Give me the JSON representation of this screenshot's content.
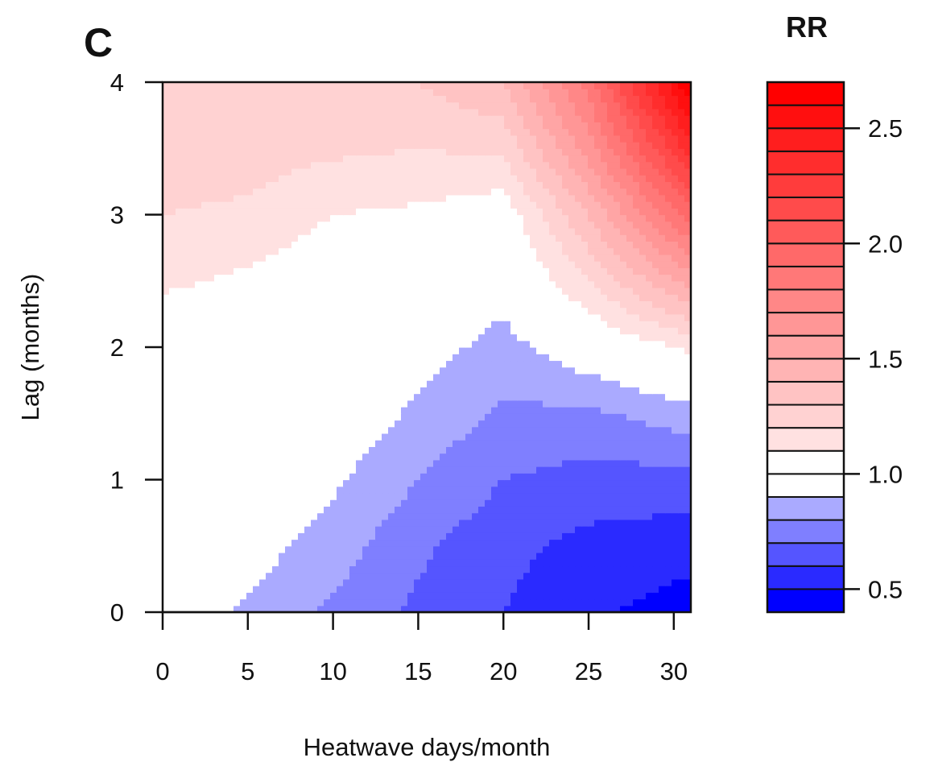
{
  "panel_label": "C",
  "chart_data": {
    "type": "heatmap",
    "subtype": "filled-contour",
    "xlabel": "Heatwave days/month",
    "ylabel": "Lag (months)",
    "xlim": [
      0,
      31
    ],
    "ylim": [
      0,
      4
    ],
    "x_ticks": [
      0,
      5,
      10,
      15,
      20,
      25,
      30
    ],
    "y_ticks": [
      0,
      1,
      2,
      3,
      4
    ],
    "grid": false,
    "legend": {
      "title": "RR",
      "placement": "right",
      "range": [
        0.4,
        2.7
      ],
      "ticks": [
        0.5,
        1.0,
        1.5,
        2.0,
        2.5
      ],
      "tick_labels": [
        "0.5",
        "1.0",
        "1.5",
        "2.0",
        "2.5"
      ],
      "levels": [
        0.4,
        0.5,
        0.6,
        0.7,
        0.8,
        0.9,
        1.0,
        1.1,
        1.2,
        1.3,
        1.4,
        1.5,
        1.6,
        1.7,
        1.8,
        1.9,
        2.0,
        2.1,
        2.2,
        2.3,
        2.4,
        2.5,
        2.6,
        2.7
      ],
      "low_color": "#0000ff",
      "mid_color": "#ffffff",
      "high_color": "#ff0000"
    },
    "surface_samples": {
      "x": [
        0,
        5,
        10,
        15,
        20,
        25,
        31
      ],
      "lag": [
        0,
        0.5,
        1,
        1.5,
        2,
        2.5,
        3,
        3.5,
        4
      ],
      "rr": [
        [
          1.0,
          0.88,
          0.78,
          0.68,
          0.6,
          0.52,
          0.45
        ],
        [
          1.0,
          0.95,
          0.85,
          0.72,
          0.63,
          0.57,
          0.54
        ],
        [
          1.0,
          1.0,
          0.92,
          0.8,
          0.7,
          0.66,
          0.66
        ],
        [
          1.0,
          1.0,
          0.98,
          0.88,
          0.78,
          0.78,
          0.86
        ],
        [
          1.0,
          1.0,
          1.0,
          0.95,
          0.86,
          0.98,
          1.12
        ],
        [
          1.12,
          1.08,
          1.02,
          1.0,
          0.95,
          1.2,
          1.55
        ],
        [
          1.2,
          1.18,
          1.1,
          1.08,
          1.03,
          1.4,
          1.95
        ],
        [
          1.25,
          1.25,
          1.22,
          1.2,
          1.22,
          1.65,
          2.35
        ],
        [
          1.25,
          1.3,
          1.3,
          1.3,
          1.4,
          1.85,
          2.7
        ]
      ]
    }
  }
}
